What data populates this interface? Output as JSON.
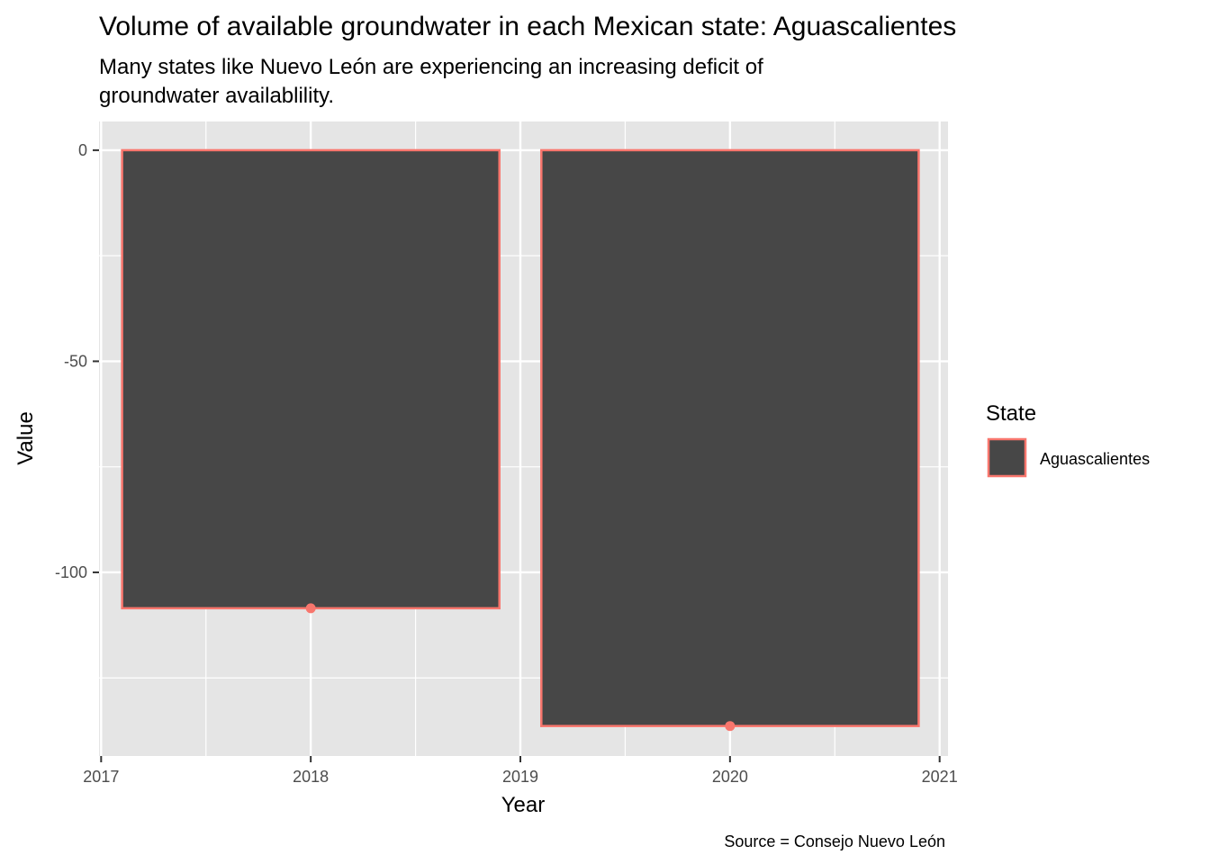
{
  "chart_data": {
    "type": "bar",
    "title": "Volume of available groundwater in each Mexican state: Aguascalientes",
    "subtitle": [
      "Many states like Nuevo León are experiencing an increasing deficit of",
      "groundwater availablility."
    ],
    "xlabel": "Year",
    "ylabel": "Value",
    "caption": "Source = Consejo Nuevo León",
    "x": [
      2018,
      2020
    ],
    "series": [
      {
        "name": "Aguascalientes",
        "values": [
          -108.5,
          -136.4
        ]
      }
    ],
    "xlim": [
      2016.99,
      2021.04
    ],
    "ylim": [
      -143.5,
      6.8
    ],
    "x_ticks": [
      2017,
      2018,
      2019,
      2020,
      2021
    ],
    "y_ticks": [
      0,
      -50,
      -100
    ],
    "legend": {
      "title": "State",
      "placement": "right",
      "entries": [
        "Aguascalientes"
      ]
    },
    "colors": {
      "panel": "#e5e5e5",
      "grid": "#ffffff",
      "bar_fill": "#474747",
      "bar_outline": "#f8766d"
    },
    "grid": true
  }
}
